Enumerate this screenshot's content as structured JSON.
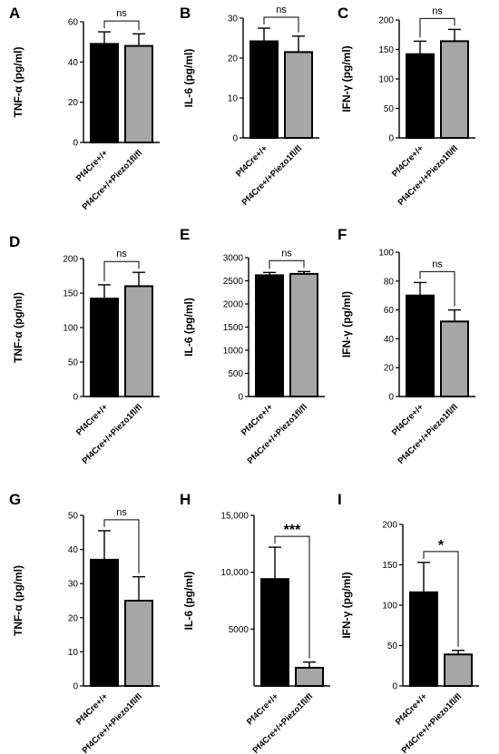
{
  "chart_data": [
    {
      "panel": "A",
      "type": "bar",
      "categories": [
        "Pf4Cre+/+",
        "Pf4Cre+/+Piezo1fl/fl"
      ],
      "values": [
        49,
        48
      ],
      "errors": [
        6,
        6
      ],
      "ylabel": "TNF-α (pg/ml)",
      "ylim": [
        0,
        60
      ],
      "yticks": [
        "0",
        "20",
        "40",
        "60"
      ],
      "significance": "ns",
      "colors": [
        "#000000",
        "#a6a6a6"
      ]
    },
    {
      "panel": "B",
      "type": "bar",
      "categories": [
        "Pf4Cre+/+",
        "Pf4Cre+/+Piezo1fl/fl"
      ],
      "values": [
        24.2,
        21.5
      ],
      "errors": [
        3.3,
        4.0
      ],
      "ylabel": "IL-6 (pg/ml)",
      "ylim": [
        0,
        30
      ],
      "yticks": [
        "0",
        "10",
        "20",
        "30"
      ],
      "significance": "ns",
      "colors": [
        "#000000",
        "#a6a6a6"
      ]
    },
    {
      "panel": "C",
      "type": "bar",
      "categories": [
        "Pf4Cre+/+",
        "Pf4Cre+/+Piezo1fl/fl"
      ],
      "values": [
        142,
        164
      ],
      "errors": [
        22,
        20
      ],
      "ylabel": "IFN-γ (pg/ml)",
      "ylim": [
        0,
        200
      ],
      "yticks": [
        "0",
        "50",
        "100",
        "150",
        "200"
      ],
      "significance": "ns",
      "colors": [
        "#000000",
        "#a6a6a6"
      ]
    },
    {
      "panel": "D",
      "type": "bar",
      "categories": [
        "Pf4Cre+/+",
        "Pf4Cre+/+Piezo1fl/fl"
      ],
      "values": [
        142,
        160
      ],
      "errors": [
        20,
        20
      ],
      "ylabel": "TNF-α (pg/ml)",
      "ylim": [
        0,
        200
      ],
      "yticks": [
        "0",
        "50",
        "100",
        "150",
        "200"
      ],
      "significance": "ns",
      "colors": [
        "#000000",
        "#a6a6a6"
      ]
    },
    {
      "panel": "E",
      "type": "bar",
      "categories": [
        "Pf4Cre+/+",
        "Pf4Cre+/+Piezo1fl/fl"
      ],
      "values": [
        2620,
        2650
      ],
      "errors": [
        60,
        50
      ],
      "ylabel": "IL-6 (pg/ml)",
      "ylim": [
        0,
        3000
      ],
      "yticks": [
        "0",
        "500",
        "1000",
        "1500",
        "2000",
        "2500",
        "3000"
      ],
      "significance": "ns",
      "colors": [
        "#000000",
        "#a6a6a6"
      ]
    },
    {
      "panel": "F",
      "type": "bar",
      "categories": [
        "Pf4Cre+/+",
        "Pf4Cre+/+Piezo1fl/fl"
      ],
      "values": [
        70,
        52
      ],
      "errors": [
        9,
        8
      ],
      "ylabel": "IFN-γ (pg/ml)",
      "ylim": [
        0,
        100
      ],
      "yticks": [
        "0",
        "20",
        "40",
        "60",
        "80",
        "100"
      ],
      "significance": "ns",
      "colors": [
        "#000000",
        "#a6a6a6"
      ]
    },
    {
      "panel": "G",
      "type": "bar",
      "categories": [
        "Pf4Cre+/+",
        "Pf4Cre+/+Piezo1fl/fl"
      ],
      "values": [
        37,
        25
      ],
      "errors": [
        8.5,
        7
      ],
      "ylabel": "TNF-α (pg/ml)",
      "ylim": [
        0,
        50
      ],
      "yticks": [
        "0",
        "10",
        "20",
        "30",
        "40",
        "50"
      ],
      "significance": "ns",
      "colors": [
        "#000000",
        "#a6a6a6"
      ]
    },
    {
      "panel": "H",
      "type": "bar",
      "categories": [
        "Pf4Cre+/+",
        "Pf4Cre+/+Piezo1fl/fl"
      ],
      "values": [
        9400,
        1600
      ],
      "errors": [
        2800,
        500
      ],
      "ylabel": "IL-6 (pg/ml)",
      "ylim": [
        0,
        15000
      ],
      "ytick_values": [
        5000,
        10000,
        15000
      ],
      "yticks": [
        "5000",
        "10,000",
        "15,000"
      ],
      "significance": "***",
      "colors": [
        "#000000",
        "#a6a6a6"
      ]
    },
    {
      "panel": "I",
      "type": "bar",
      "categories": [
        "Pf4Cre+/+",
        "Pf4Cre+/+Piezo1fl/fl"
      ],
      "values": [
        116,
        39
      ],
      "errors": [
        37,
        5
      ],
      "ylabel": "IFN-γ (pg/ml)",
      "ylim": [
        0,
        200
      ],
      "yticks": [
        "0",
        "50",
        "100",
        "150",
        "200"
      ],
      "significance": "*",
      "colors": [
        "#000000",
        "#a6a6a6"
      ]
    }
  ]
}
